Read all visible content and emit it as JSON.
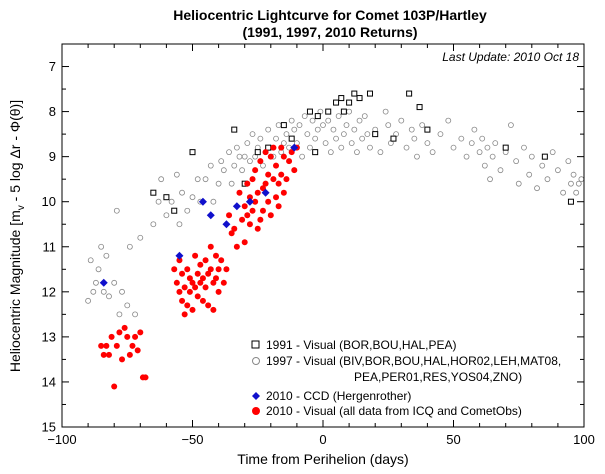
{
  "chart_data": {
    "type": "scatter",
    "title": "Heliocentric Lightcurve for Comet 103P/Hartley",
    "subtitle": "(1991, 1997, 2010 Returns)",
    "annotation": "Last Update: 2010 Oct 18",
    "xlabel": "Time from Perihelion (days)",
    "ylabel": "Heliocentric Magnitude [m",
    "ylabel_sub": "v",
    "ylabel_rest": " - 5 log Δr - Φ(θ)]",
    "xlim": [
      -100,
      100
    ],
    "ylim": [
      15,
      6.5
    ],
    "y_inverted": true,
    "x_ticks": [
      -100,
      -50,
      0,
      50,
      100
    ],
    "x_tick_labels": [
      "−100",
      "−50",
      "0",
      "50",
      "100"
    ],
    "y_ticks": [
      7,
      8,
      9,
      10,
      11,
      12,
      13,
      14,
      15
    ],
    "y_tick_labels": [
      "7",
      "8",
      "9",
      "10",
      "11",
      "12",
      "13",
      "14",
      "15"
    ],
    "legend_position": "bottom-right",
    "legend": {
      "l1991": "1991 - Visual (BOR,BOU,HAL,PEA)",
      "l1997a": "1997 - Visual (BIV,BOR,BOU,HAL,HOR02,LEH,MAT08,",
      "l1997b": "PEA,PER01,RES,YOS04,ZNO)",
      "l2010ccd": "2010 - CCD (Hergenrother)",
      "l2010vis": "2010 - Visual (all data from ICQ and CometObs)"
    },
    "series": [
      {
        "key": "v1991",
        "marker": "open-square",
        "color": "#000000",
        "x": [
          -65,
          -60,
          -57,
          -50,
          -34,
          -30,
          -25,
          -21,
          -15,
          -12,
          -5,
          -3,
          -2,
          2,
          5,
          7,
          8,
          10,
          12,
          14,
          18,
          20,
          27,
          33,
          37,
          40,
          70,
          85,
          95
        ],
        "y": [
          9.8,
          9.9,
          10.2,
          8.9,
          8.4,
          9.6,
          8.9,
          8.8,
          8.3,
          8.6,
          8.0,
          8.9,
          8.1,
          8.0,
          7.8,
          7.7,
          8.0,
          7.8,
          7.6,
          7.7,
          7.6,
          8.5,
          8.6,
          7.6,
          7.9,
          8.4,
          8.8,
          9.0,
          10.0
        ]
      },
      {
        "key": "v1997",
        "marker": "open-circle",
        "color": "#888888",
        "x": [
          -90,
          -89,
          -88,
          -87,
          -86,
          -85,
          -84,
          -83,
          -82,
          -80,
          -79,
          -78,
          -77,
          -75,
          -74,
          -72,
          -70,
          -65,
          -63,
          -62,
          -60,
          -58,
          -56,
          -55,
          -54,
          -52,
          -50,
          -48,
          -47,
          -45,
          -43,
          -42,
          -40,
          -39,
          -38,
          -36,
          -35,
          -34,
          -33,
          -32,
          -31,
          -30,
          -29,
          -28,
          -27,
          -26,
          -25,
          -24,
          -23,
          -22,
          -21,
          -20,
          -19,
          -18,
          -17,
          -16,
          -15,
          -14,
          -13,
          -12,
          -11,
          -10,
          -9,
          -8,
          -7,
          -6,
          -5,
          -4,
          -3,
          -2,
          -1,
          0,
          1,
          2,
          3,
          4,
          5,
          6,
          7,
          8,
          9,
          10,
          11,
          12,
          13,
          14,
          15,
          16,
          17,
          18,
          20,
          22,
          24,
          25,
          26,
          28,
          30,
          32,
          34,
          35,
          36,
          38,
          40,
          42,
          45,
          48,
          50,
          53,
          55,
          57,
          58,
          60,
          61,
          62,
          63,
          64,
          65,
          66,
          68,
          70,
          72,
          74,
          75,
          77,
          79,
          80,
          82,
          84,
          86,
          88,
          90,
          92,
          94,
          95,
          96,
          97,
          98,
          99
        ],
        "y": [
          12.2,
          11.3,
          12.0,
          11.8,
          11.5,
          11.0,
          12.0,
          11.2,
          12.1,
          11.8,
          10.2,
          12.5,
          12.0,
          12.3,
          11.0,
          12.5,
          10.8,
          10.5,
          10.0,
          9.5,
          10.3,
          10.0,
          9.4,
          10.5,
          9.8,
          10.2,
          9.9,
          9.5,
          10.0,
          9.5,
          9.2,
          10.0,
          9.6,
          9.1,
          9.3,
          8.9,
          9.6,
          9.2,
          8.8,
          9.0,
          9.3,
          9.0,
          8.7,
          9.1,
          8.5,
          9.0,
          8.8,
          8.6,
          9.2,
          8.9,
          8.4,
          8.8,
          9.0,
          8.6,
          8.3,
          8.9,
          8.7,
          8.5,
          8.8,
          8.2,
          8.4,
          8.7,
          8.3,
          9.0,
          8.1,
          8.5,
          8.8,
          8.2,
          8.6,
          8.4,
          8.0,
          8.3,
          8.7,
          8.2,
          8.9,
          8.4,
          8.6,
          8.1,
          8.8,
          8.5,
          8.3,
          8.0,
          8.7,
          8.4,
          8.9,
          8.2,
          8.6,
          8.1,
          8.5,
          8.8,
          8.4,
          8.9,
          8.0,
          8.3,
          8.7,
          8.5,
          8.2,
          8.8,
          8.4,
          8.6,
          9.0,
          8.3,
          8.7,
          8.9,
          8.5,
          8.2,
          8.8,
          8.6,
          9.0,
          8.7,
          8.4,
          8.9,
          8.6,
          9.2,
          8.8,
          9.5,
          9.0,
          8.7,
          9.3,
          8.9,
          8.3,
          9.1,
          9.6,
          8.8,
          9.4,
          9.0,
          9.7,
          9.2,
          9.5,
          8.9,
          9.3,
          9.8,
          9.1,
          9.6,
          9.4,
          9.8,
          9.6,
          9.5
        ]
      },
      {
        "key": "ccd2010",
        "marker": "filled-diamond",
        "color": "#1010cc",
        "x": [
          -84,
          -55,
          -46,
          -43,
          -37,
          -33,
          -28,
          -22,
          -11
        ],
        "y": [
          11.8,
          11.2,
          10.0,
          10.3,
          10.5,
          10.1,
          10.0,
          9.8,
          8.8
        ]
      },
      {
        "key": "vis2010",
        "marker": "filled-circle",
        "color": "#ff0000",
        "x": [
          -85,
          -84,
          -83,
          -82,
          -81,
          -80,
          -79,
          -78,
          -77,
          -76,
          -75,
          -74,
          -73,
          -72,
          -71,
          -70,
          -69,
          -68,
          -57,
          -56,
          -55,
          -55,
          -54,
          -54,
          -53,
          -53,
          -52,
          -52,
          -51,
          -51,
          -50,
          -50,
          -49,
          -49,
          -48,
          -48,
          -47,
          -47,
          -46,
          -46,
          -45,
          -45,
          -44,
          -44,
          -43,
          -43,
          -42,
          -42,
          -41,
          -41,
          -40,
          -40,
          -39,
          -38,
          -37,
          -36,
          -35,
          -34,
          -33,
          -32,
          -31,
          -30,
          -30,
          -29,
          -29,
          -28,
          -28,
          -27,
          -27,
          -26,
          -26,
          -25,
          -25,
          -24,
          -24,
          -23,
          -23,
          -22,
          -22,
          -21,
          -21,
          -20,
          -20,
          -19,
          -19,
          -18,
          -18,
          -17,
          -17,
          -16,
          -16,
          -15,
          -15,
          -14,
          -13,
          -12,
          -11,
          -10
        ],
        "y": [
          13.2,
          13.4,
          13.2,
          13.4,
          13.0,
          14.1,
          13.2,
          12.9,
          13.5,
          12.8,
          13.0,
          13.4,
          13.2,
          13.0,
          13.3,
          12.9,
          13.9,
          13.9,
          11.5,
          11.8,
          12.0,
          11.3,
          12.2,
          11.6,
          12.5,
          11.9,
          12.3,
          11.5,
          12.0,
          11.7,
          11.8,
          12.4,
          11.2,
          11.9,
          11.6,
          12.1,
          11.4,
          11.8,
          11.7,
          12.2,
          11.3,
          11.9,
          11.6,
          12.3,
          11.0,
          11.5,
          11.8,
          12.4,
          11.2,
          11.7,
          11.5,
          12.0,
          11.3,
          11.8,
          11.5,
          10.3,
          10.7,
          10.6,
          11.0,
          9.8,
          10.4,
          10.1,
          10.9,
          9.6,
          10.3,
          9.9,
          10.5,
          9.5,
          10.2,
          10.0,
          9.3,
          10.6,
          9.8,
          9.1,
          10.4,
          9.7,
          10.2,
          8.9,
          9.6,
          10.0,
          9.4,
          9.0,
          10.3,
          9.5,
          8.8,
          9.9,
          9.2,
          10.1,
          9.6,
          8.8,
          9.4,
          9.8,
          9.0,
          9.5,
          9.1,
          8.9,
          9.3,
          8.8
        ]
      }
    ]
  }
}
